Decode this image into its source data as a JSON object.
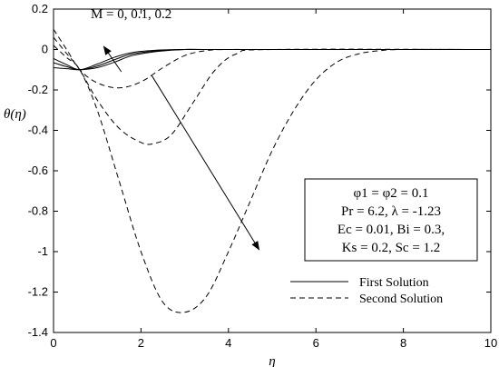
{
  "chart_data": {
    "type": "line",
    "xlabel": "η",
    "ylabel": "θ(η)",
    "xlim": [
      0,
      10
    ],
    "ylim": [
      -1.4,
      0.2
    ],
    "xticks": [
      0,
      2,
      4,
      6,
      8,
      10
    ],
    "yticks": [
      0.2,
      0,
      -0.2,
      -0.4,
      -0.6,
      -0.8,
      -1,
      -1.2,
      -1.4
    ],
    "grid": false,
    "legend_position": "bottom-right",
    "legend": [
      {
        "label": "First Solution",
        "style": "solid"
      },
      {
        "label": "Second Solution",
        "style": "dashed"
      }
    ],
    "annotations": {
      "m_label": "M = 0, 0.1, 0.2",
      "params": [
        "φ1 = φ2 = 0.1",
        "Pr = 6.2, λ = -1.23",
        "Ec = 0.01, Bi = 0.3,",
        "Ks = 0.2, Sc = 1.2"
      ]
    },
    "series": [
      {
        "style": "solid",
        "x": [
          0,
          0.3,
          0.6,
          1.0,
          1.4,
          1.8,
          2.4,
          3.0,
          4.0,
          10.0
        ],
        "y": [
          -0.045,
          -0.075,
          -0.1,
          -0.072,
          -0.038,
          -0.015,
          -0.003,
          0.0,
          0.0,
          0.0
        ]
      },
      {
        "style": "solid",
        "x": [
          0,
          0.3,
          0.6,
          1.0,
          1.4,
          1.8,
          2.4,
          3.0,
          4.0,
          10.0
        ],
        "y": [
          -0.065,
          -0.085,
          -0.1,
          -0.082,
          -0.05,
          -0.022,
          -0.006,
          0.0,
          0.0,
          0.0
        ]
      },
      {
        "style": "solid",
        "x": [
          0,
          0.3,
          0.6,
          1.0,
          1.4,
          1.8,
          2.4,
          3.0,
          4.0,
          10.0
        ],
        "y": [
          -0.09,
          -0.095,
          -0.1,
          -0.09,
          -0.062,
          -0.03,
          -0.009,
          0.0,
          0.0,
          0.0
        ]
      },
      {
        "style": "dashed",
        "x": [
          0,
          0.3,
          0.6,
          1.0,
          1.5,
          2.0,
          2.5,
          3.0,
          3.5,
          4.0,
          5.0,
          10.0
        ],
        "y": [
          0.1,
          0.0,
          -0.1,
          -0.165,
          -0.19,
          -0.16,
          -0.09,
          -0.03,
          -0.005,
          0.0,
          0.0,
          0.0
        ]
      },
      {
        "style": "dashed",
        "x": [
          0,
          0.3,
          0.6,
          1.0,
          1.5,
          2.0,
          2.3,
          2.7,
          3.2,
          3.7,
          4.2,
          5.0,
          10.0
        ],
        "y": [
          0.06,
          -0.02,
          -0.1,
          -0.25,
          -0.39,
          -0.46,
          -0.465,
          -0.42,
          -0.26,
          -0.1,
          -0.02,
          0.0,
          0.0
        ]
      },
      {
        "style": "dashed",
        "x": [
          0,
          0.3,
          0.6,
          1.0,
          1.5,
          2.0,
          2.5,
          3.0,
          3.5,
          4.0,
          4.5,
          5.0,
          5.5,
          6.0,
          6.5,
          7.0,
          7.5,
          8.0,
          10.0
        ],
        "y": [
          0.02,
          -0.04,
          -0.1,
          -0.3,
          -0.65,
          -1.0,
          -1.25,
          -1.3,
          -1.22,
          -1.0,
          -0.75,
          -0.5,
          -0.3,
          -0.15,
          -0.06,
          -0.02,
          -0.005,
          0.0,
          0.0
        ]
      }
    ]
  }
}
